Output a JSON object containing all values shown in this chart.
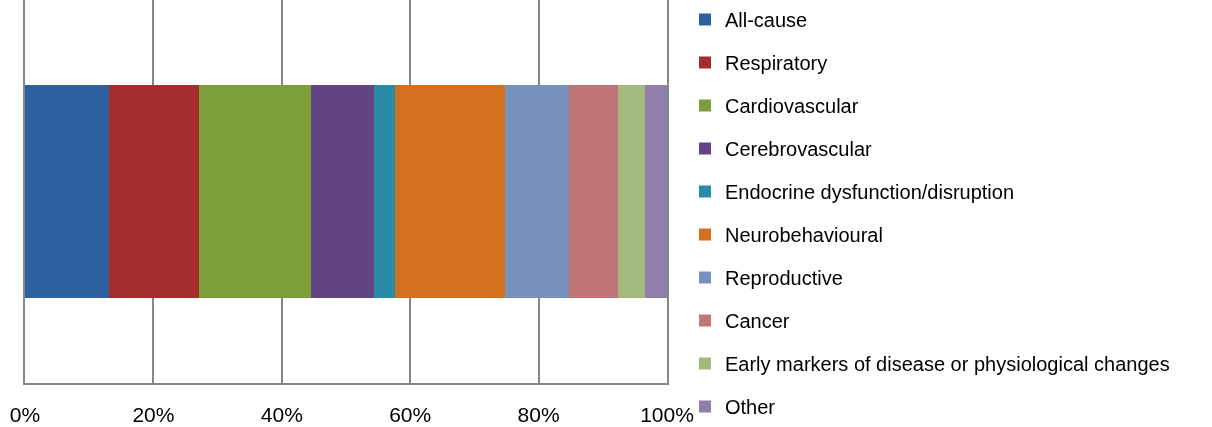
{
  "chart_data": {
    "type": "bar",
    "orientation": "horizontal",
    "stacked": true,
    "categories": [
      null
    ],
    "series": [
      {
        "name": "All-cause",
        "color": "#2e60a0",
        "values": [
          13.1
        ]
      },
      {
        "name": "Respiratory",
        "color": "#a32c2c",
        "values": [
          14.0
        ]
      },
      {
        "name": "Cardiovascular",
        "color": "#7c9e38",
        "values": [
          17.4
        ]
      },
      {
        "name": "Cerebrovascular",
        "color": "#624383",
        "values": [
          9.8
        ]
      },
      {
        "name": "Endocrine dysfunction/disruption",
        "color": "#288ba8",
        "values": [
          3.3
        ]
      },
      {
        "name": "Neurobehavioural",
        "color": "#d4701d",
        "values": [
          17.2
        ]
      },
      {
        "name": "Reproductive",
        "color": "#7791bd",
        "values": [
          9.9
        ]
      },
      {
        "name": "Cancer",
        "color": "#c07676",
        "values": [
          7.6
        ]
      },
      {
        "name": "Early markers of disease or physiological changes",
        "color": "#a2ba7b",
        "values": [
          4.3
        ]
      },
      {
        "name": "Other",
        "color": "#907fab",
        "values": [
          3.4
        ]
      }
    ],
    "xlim": [
      0,
      100
    ],
    "xticks": [
      {
        "value": 0,
        "label": "0%"
      },
      {
        "value": 20,
        "label": "20%"
      },
      {
        "value": 40,
        "label": "40%"
      },
      {
        "value": 60,
        "label": "60%"
      },
      {
        "value": 80,
        "label": "80%"
      },
      {
        "value": 100,
        "label": "100%"
      }
    ],
    "grid": "x",
    "legend": "right"
  }
}
